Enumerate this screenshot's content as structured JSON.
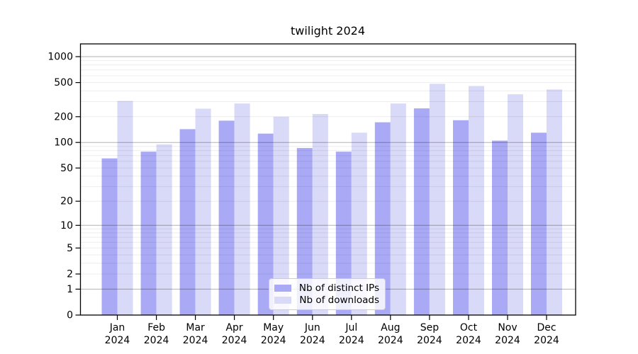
{
  "title": "twilight 2024",
  "legend": {
    "items": [
      {
        "label": "Nb of distinct IPs",
        "color": "#a9a9f5"
      },
      {
        "label": "Nb of downloads",
        "color": "#d9d9f8"
      }
    ]
  },
  "chart_data": {
    "type": "bar",
    "title": "twilight 2024",
    "categories": [
      "Jan 2024",
      "Feb 2024",
      "Mar 2024",
      "Apr 2024",
      "May 2024",
      "Jun 2024",
      "Jul 2024",
      "Aug 2024",
      "Sep 2024",
      "Oct 2024",
      "Nov 2024",
      "Dec 2024"
    ],
    "series": [
      {
        "name": "Nb of distinct IPs",
        "color": "#a9a9f5",
        "values": [
          65,
          78,
          143,
          180,
          127,
          86,
          78,
          172,
          250,
          182,
          105,
          130
        ]
      },
      {
        "name": "Nb of downloads",
        "color": "#d9d9f8",
        "values": [
          305,
          95,
          248,
          285,
          200,
          215,
          130,
          285,
          483,
          455,
          365,
          415
        ]
      }
    ],
    "xlabel": "",
    "ylabel": "",
    "yscale": "log1p",
    "yticks": [
      0,
      1,
      2,
      5,
      10,
      20,
      50,
      100,
      200,
      500,
      1000
    ],
    "ylim": [
      0,
      1400
    ],
    "grid": "both",
    "legend_position": "lower center"
  }
}
